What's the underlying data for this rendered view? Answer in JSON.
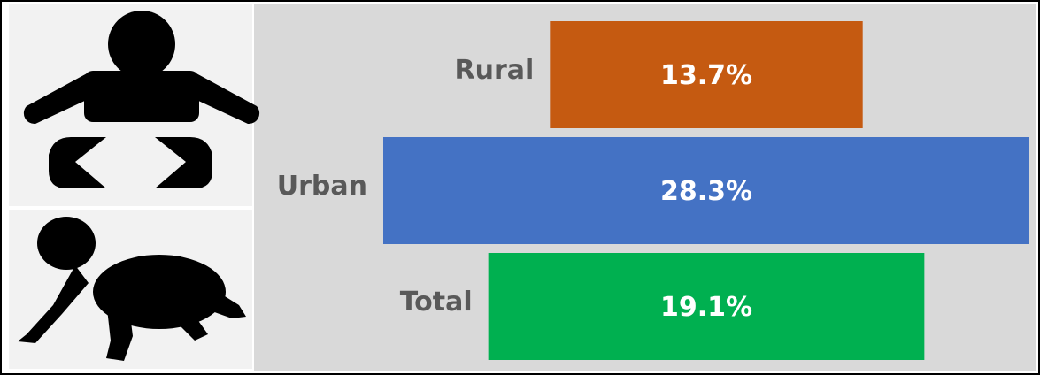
{
  "chart_data": {
    "type": "bar",
    "categories": [
      "Rural",
      "Urban",
      "Total"
    ],
    "values": [
      13.7,
      28.3,
      19.1
    ],
    "value_labels": [
      "13.7%",
      "28.3%",
      "19.1%"
    ],
    "colors": [
      "#c55a11",
      "#4472c4",
      "#00b050"
    ]
  }
}
